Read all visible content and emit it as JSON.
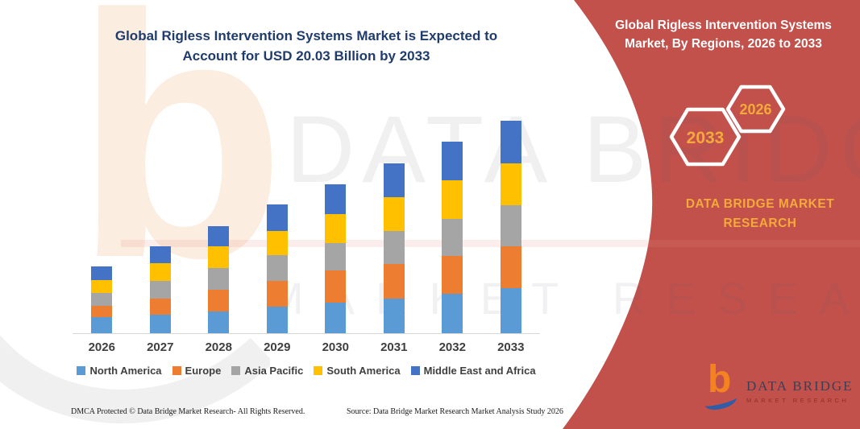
{
  "title": {
    "line1": "Global Rigless Intervention Systems Market is Expected to",
    "line2": "Account for USD 20.03 Billion by 2033",
    "color": "#1F3C6D"
  },
  "banner": {
    "bg_color": "#C2504B",
    "accent_color": "#F4A93C",
    "title_line1": "Global Rigless Intervention Systems",
    "title_line2": "Market, By Regions, 2026 to 2033",
    "hexagons": [
      {
        "label": "2033"
      },
      {
        "label": "2026"
      }
    ],
    "brand_line1": "DATA BRIDGE MARKET",
    "brand_line2": "RESEARCH"
  },
  "chart_data": {
    "type": "bar",
    "stacked": true,
    "title": "Global Rigless Intervention Systems Market is Expected to Account for USD 20.03 Billion by 2033",
    "unit": "USD Billion",
    "xlabel": "",
    "ylabel": "",
    "y_axis_visible": false,
    "gridlines": false,
    "legend_position": "bottom",
    "ylim": [
      0,
      21
    ],
    "categories": [
      "2026",
      "2027",
      "2028",
      "2029",
      "2030",
      "2031",
      "2032",
      "2033"
    ],
    "series": [
      {
        "name": "North America",
        "color": "#5B9BD5",
        "values": [
          1.52,
          1.75,
          2.05,
          2.5,
          2.88,
          3.26,
          3.72,
          4.25
        ]
      },
      {
        "name": "Europe",
        "color": "#ED7D31",
        "values": [
          1.06,
          1.52,
          2.05,
          2.43,
          3.04,
          3.26,
          3.57,
          3.95
        ]
      },
      {
        "name": "Asia Pacific",
        "color": "#A5A5A5",
        "values": [
          1.21,
          1.67,
          2.05,
          2.43,
          2.58,
          3.11,
          3.49,
          3.87
        ]
      },
      {
        "name": "South America",
        "color": "#FFC000",
        "values": [
          1.21,
          1.67,
          2.05,
          2.28,
          2.73,
          3.19,
          3.64,
          3.95
        ]
      },
      {
        "name": "Middle East and Africa",
        "color": "#4472C4",
        "values": [
          1.29,
          1.59,
          1.9,
          2.5,
          2.81,
          3.19,
          3.64,
          4.02
        ]
      }
    ],
    "totals": [
      6.29,
      8.2,
      10.1,
      12.14,
      14.04,
      16.01,
      18.06,
      20.03
    ]
  },
  "footer": {
    "dmca": "DMCA Protected © Data Bridge Market Research-  All Rights Reserved.",
    "source": "Source: Data Bridge Market Research  Market Analysis Study 2026"
  },
  "logo": {
    "glyph": "b",
    "name": "DATA BRIDGE",
    "tagline": "MARKET RESEARCH"
  },
  "watermark": {
    "logo_glyph": "b",
    "text_main": "DATA BRIDGE",
    "text_sub": "MARKET RESEARCH"
  }
}
